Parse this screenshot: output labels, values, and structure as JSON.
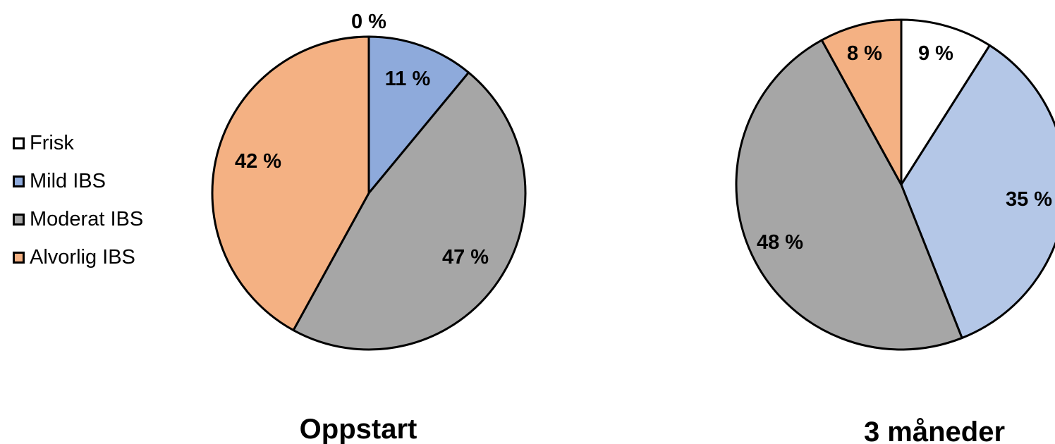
{
  "chart_data": [
    {
      "type": "pie",
      "title": "Oppstart",
      "categories": [
        "Frisk",
        "Mild IBS",
        "Moderat IBS",
        "Alvorlig IBS"
      ],
      "values": [
        0,
        11,
        47,
        42
      ],
      "labels": [
        "0 %",
        "11 %",
        "47 %",
        "42 %"
      ],
      "colors": [
        "#ffffff",
        "#8eaadb",
        "#a6a6a6",
        "#f4b183"
      ]
    },
    {
      "type": "pie",
      "title": "3 måneder",
      "categories": [
        "Frisk",
        "Mild IBS",
        "Moderat IBS",
        "Alvorlig IBS"
      ],
      "values": [
        9,
        35,
        48,
        8
      ],
      "labels": [
        "9 %",
        "35 %",
        "48 %",
        "8 %"
      ],
      "colors": [
        "#ffffff",
        "#b4c7e7",
        "#a6a6a6",
        "#f4b183"
      ]
    }
  ],
  "legend": {
    "position": "left",
    "items": [
      {
        "label": "Frisk",
        "color": "#ffffff"
      },
      {
        "label": "Mild IBS",
        "color": "#8eaadb"
      },
      {
        "label": "Moderat IBS",
        "color": "#a6a6a6"
      },
      {
        "label": "Alvorlig IBS",
        "color": "#f4b183"
      }
    ]
  }
}
